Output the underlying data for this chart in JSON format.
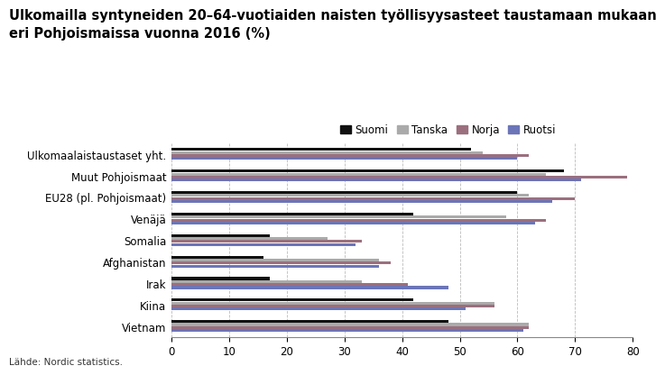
{
  "title_line1": "Ulkomailla syntyneiden 20–64-vuotiaiden naisten työllisyysasteet taustamaan mukaan",
  "title_line2": "eri Pohjoismaissa vuonna 2016 (%)",
  "source": "Lähde: Nordic statistics.",
  "categories": [
    "Ulkomaalaistaustaset yht.",
    "Muut Pohjoismaat",
    "EU28 (pl. Pohjoismaat)",
    "Venäjä",
    "Somalia",
    "Afghanistan",
    "Irak",
    "Kiina",
    "Vietnam"
  ],
  "series": {
    "Suomi": [
      52,
      68,
      60,
      42,
      17,
      16,
      17,
      42,
      48
    ],
    "Tanska": [
      54,
      65,
      62,
      58,
      27,
      36,
      33,
      56,
      62
    ],
    "Norja": [
      62,
      79,
      70,
      65,
      33,
      38,
      41,
      56,
      62
    ],
    "Ruotsi": [
      60,
      71,
      66,
      63,
      32,
      36,
      48,
      51,
      61
    ]
  },
  "colors": {
    "Suomi": "#111111",
    "Tanska": "#aaaaaa",
    "Norja": "#9b6f7e",
    "Ruotsi": "#6b75b8"
  },
  "xlim": [
    0,
    80
  ],
  "xticks": [
    0,
    10,
    20,
    30,
    40,
    50,
    60,
    70,
    80
  ],
  "background_color": "#ffffff",
  "title_fontsize": 10.5,
  "legend_fontsize": 8.5,
  "axis_fontsize": 8.5,
  "label_fontsize": 8.5
}
